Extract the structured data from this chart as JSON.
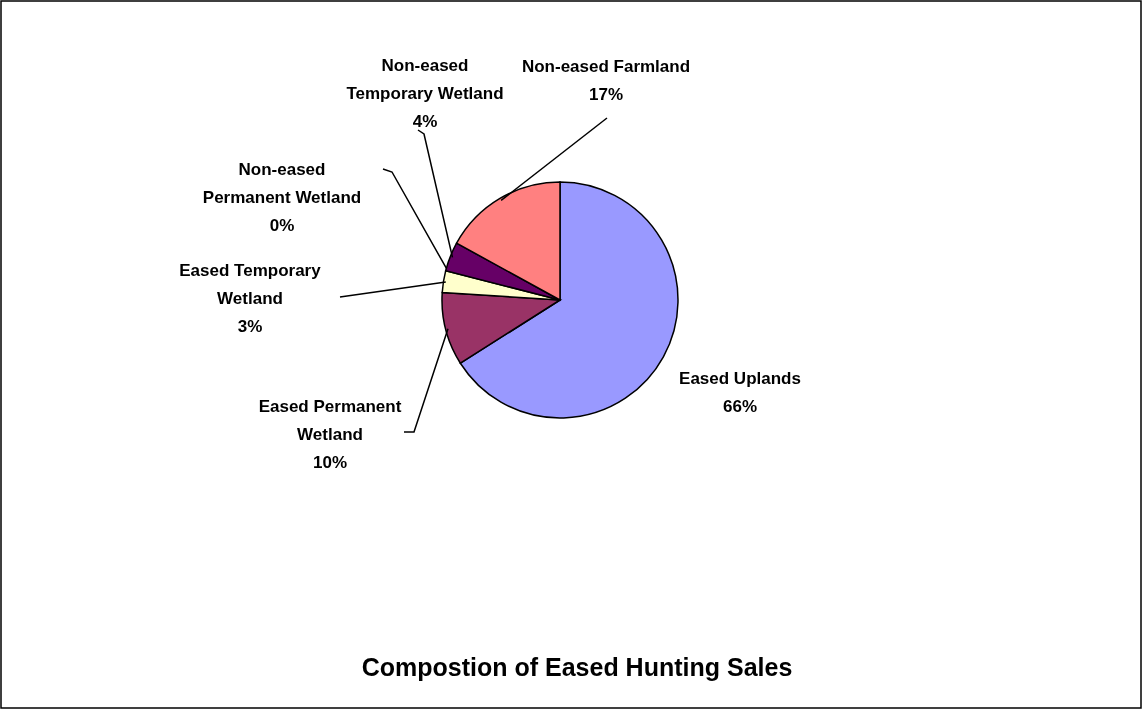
{
  "chart_data": {
    "type": "pie",
    "title": "Compostion of Eased Hunting Sales",
    "categories": [
      "Eased Uplands",
      "Eased Permanent Wetland",
      "Eased Temporary Wetland",
      "Non-eased Permanent Wetland",
      "Non-eased Temporary Wetland",
      "Non-eased Farmland"
    ],
    "values": [
      66,
      10,
      3,
      0,
      4,
      17
    ],
    "value_labels": [
      "66%",
      "10%",
      "3%",
      "0%",
      "4%",
      "17%"
    ],
    "colors": [
      "#9999ff",
      "#993366",
      "#ffffcc",
      null,
      "#660066",
      "#ff8080"
    ]
  }
}
